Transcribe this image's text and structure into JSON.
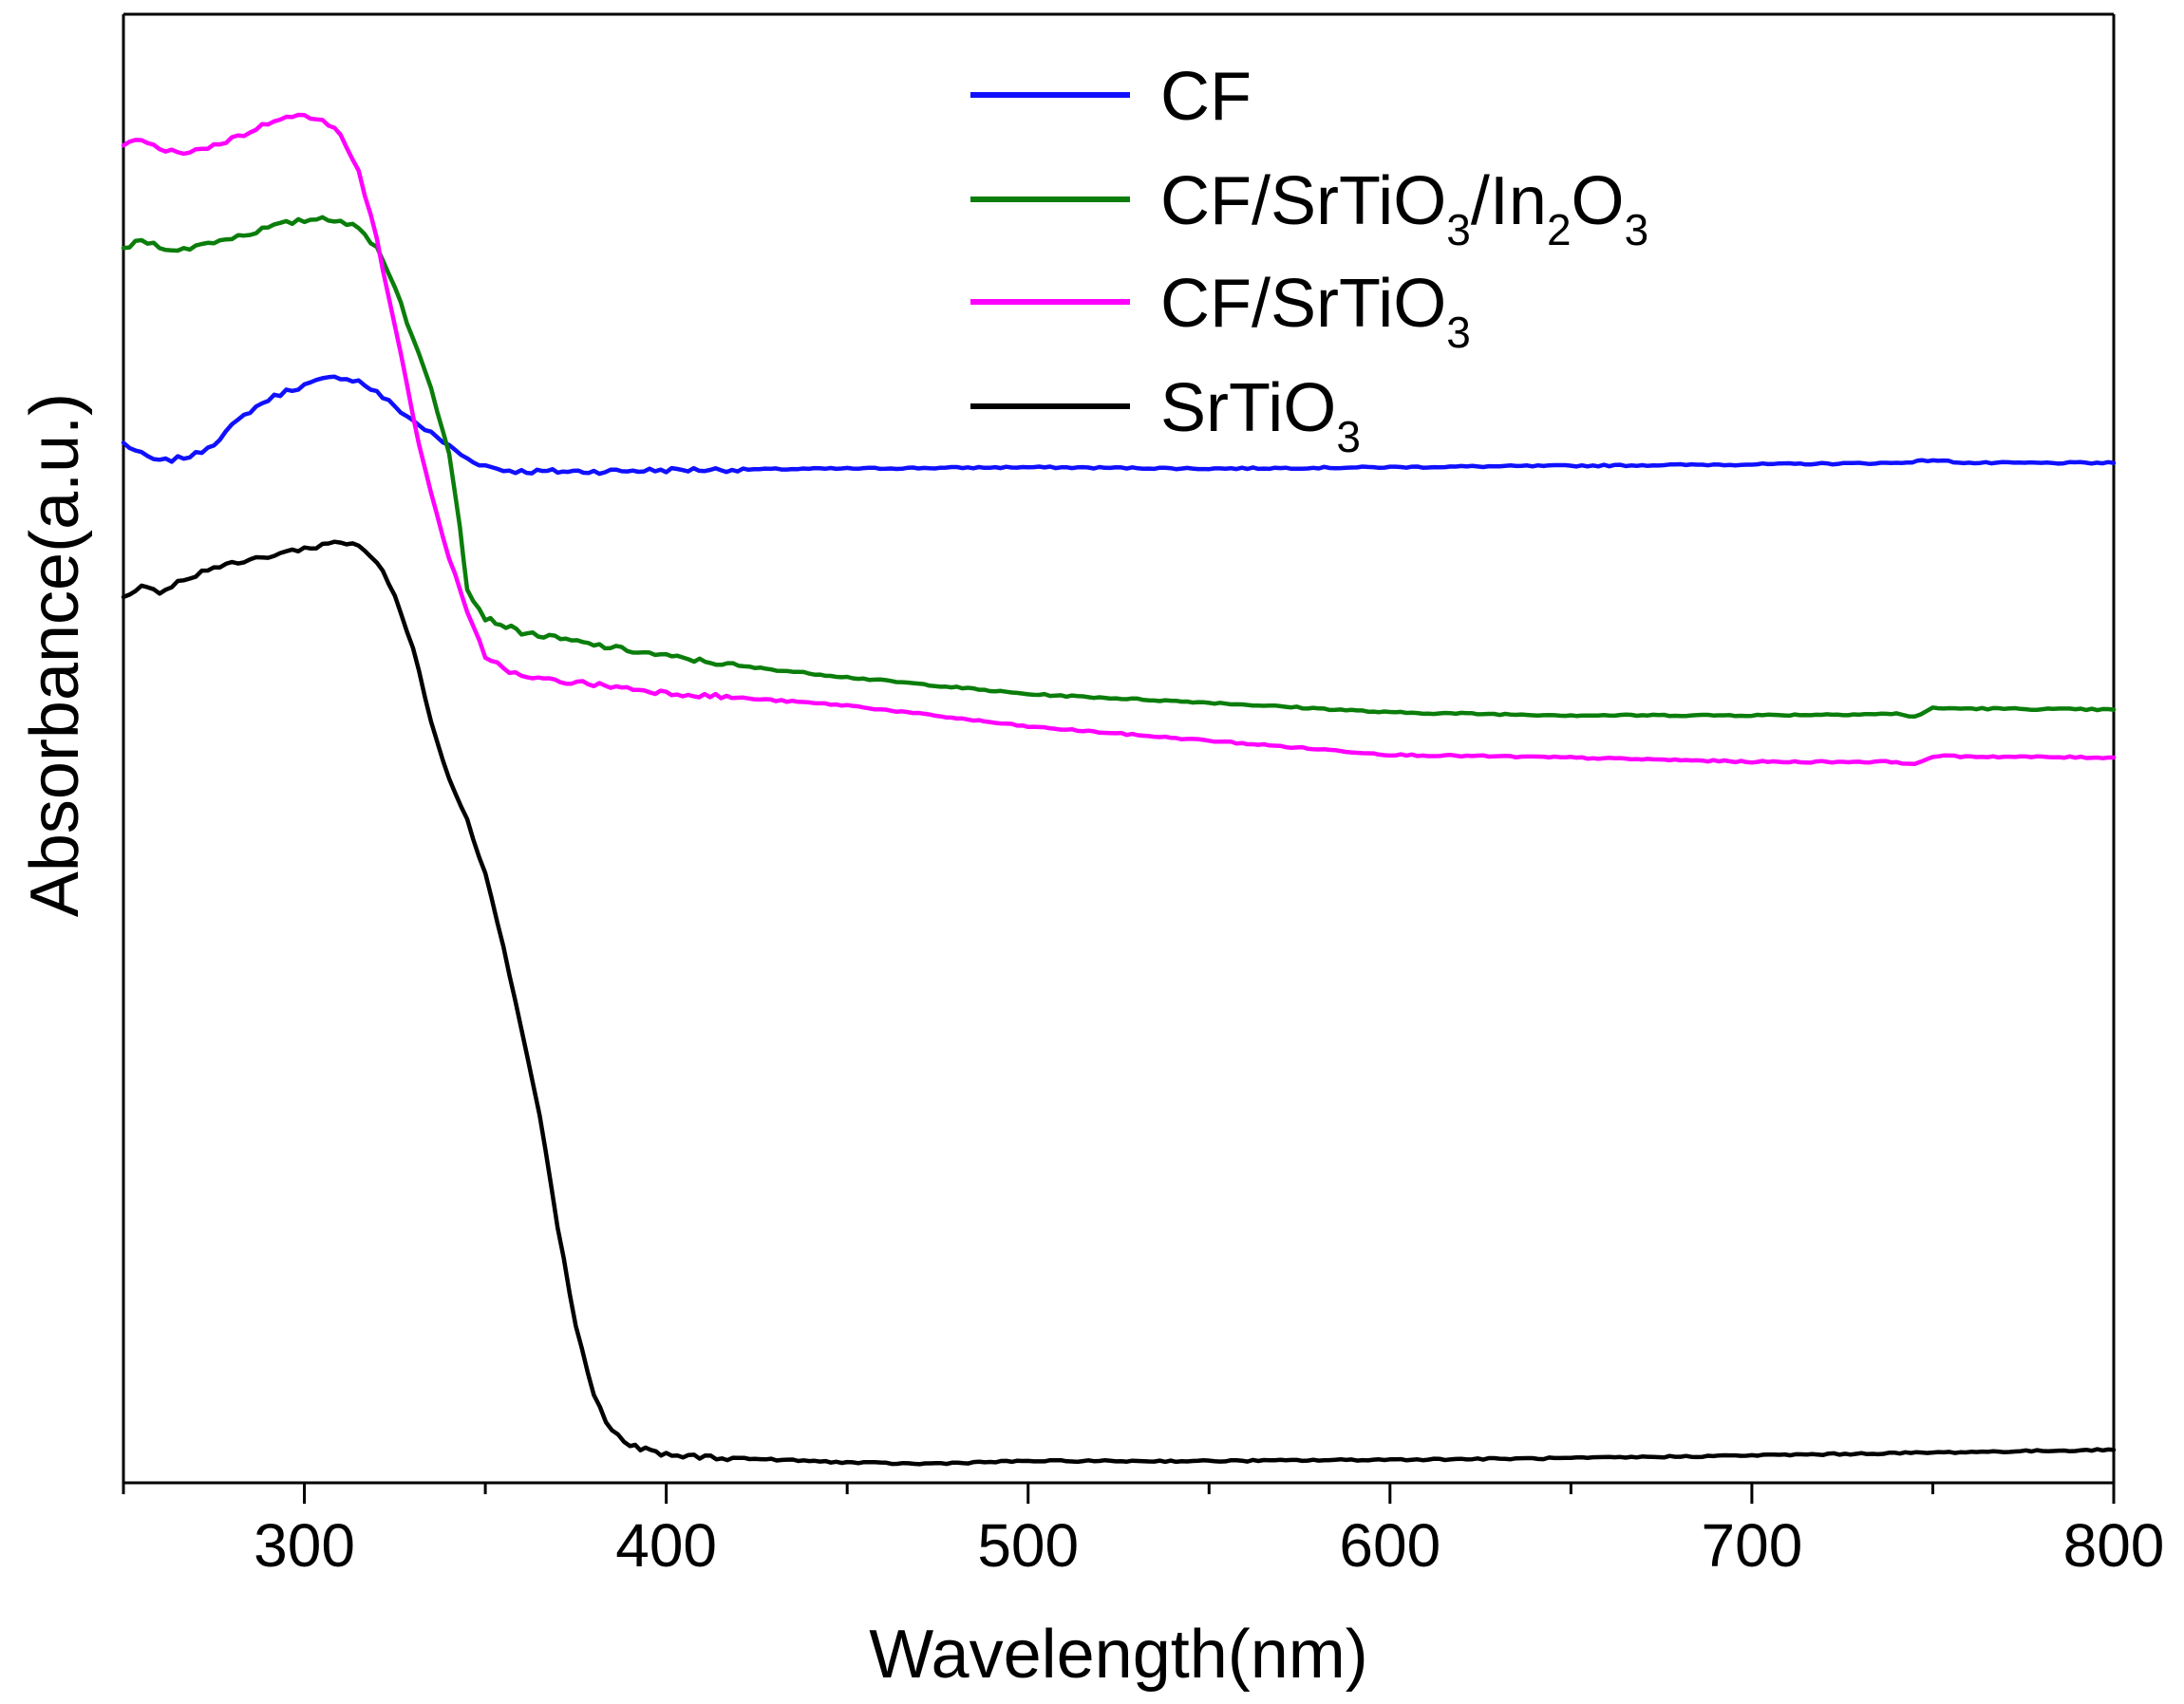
{
  "chart_data": {
    "type": "line",
    "title": "",
    "xlabel": "Wavelength(nm)",
    "ylabel": "Absorbance(a.u.)",
    "xlim": [
      250,
      800
    ],
    "ylim": [
      0,
      1
    ],
    "x_ticks": [
      300,
      400,
      500,
      600,
      700,
      800
    ],
    "y_ticks": [],
    "grid": false,
    "legend_position": "top-right",
    "series": [
      {
        "name": "CF",
        "legend": {
          "main": "CF",
          "parts": []
        },
        "color": "#1010ff",
        "points": [
          [
            250,
            0.726
          ],
          [
            255,
            0.718
          ],
          [
            260,
            0.713
          ],
          [
            265,
            0.715
          ],
          [
            270,
            0.718
          ],
          [
            275,
            0.726
          ],
          [
            280,
            0.738
          ],
          [
            285,
            0.749
          ],
          [
            290,
            0.757
          ],
          [
            295,
            0.763
          ],
          [
            300,
            0.767
          ],
          [
            305,
            0.771
          ],
          [
            310,
            0.773
          ],
          [
            315,
            0.77
          ],
          [
            320,
            0.762
          ],
          [
            325,
            0.752
          ],
          [
            330,
            0.742
          ],
          [
            335,
            0.733
          ],
          [
            340,
            0.724
          ],
          [
            345,
            0.715
          ],
          [
            350,
            0.71
          ],
          [
            355,
            0.707
          ],
          [
            360,
            0.706
          ],
          [
            370,
            0.706
          ],
          [
            380,
            0.706
          ],
          [
            400,
            0.707
          ],
          [
            450,
            0.708
          ],
          [
            500,
            0.709
          ],
          [
            550,
            0.708
          ],
          [
            600,
            0.709
          ],
          [
            650,
            0.71
          ],
          [
            700,
            0.711
          ],
          [
            740,
            0.712
          ],
          [
            750,
            0.714
          ],
          [
            760,
            0.712
          ],
          [
            780,
            0.712
          ],
          [
            800,
            0.712
          ]
        ]
      },
      {
        "name": "CF/SrTiO3/In2O3",
        "legend": {
          "main": "CF/SrTiO",
          "parts": [
            {
              "t": "3",
              "sub": true
            },
            {
              "t": "/In",
              "sub": false
            },
            {
              "t": "2",
              "sub": true
            },
            {
              "t": "O",
              "sub": false
            },
            {
              "t": "3",
              "sub": true
            }
          ]
        },
        "color": "#0b7d0b",
        "points": [
          [
            250,
            0.864
          ],
          [
            255,
            0.87
          ],
          [
            260,
            0.866
          ],
          [
            265,
            0.862
          ],
          [
            270,
            0.866
          ],
          [
            275,
            0.869
          ],
          [
            280,
            0.872
          ],
          [
            285,
            0.875
          ],
          [
            290,
            0.879
          ],
          [
            295,
            0.882
          ],
          [
            300,
            0.884
          ],
          [
            305,
            0.886
          ],
          [
            310,
            0.884
          ],
          [
            315,
            0.878
          ],
          [
            320,
            0.865
          ],
          [
            325,
            0.838
          ],
          [
            330,
            0.8
          ],
          [
            335,
            0.765
          ],
          [
            340,
            0.72
          ],
          [
            343,
            0.668
          ],
          [
            345,
            0.622
          ],
          [
            350,
            0.602
          ],
          [
            360,
            0.592
          ],
          [
            380,
            0.583
          ],
          [
            400,
            0.575
          ],
          [
            420,
            0.568
          ],
          [
            450,
            0.56
          ],
          [
            500,
            0.548
          ],
          [
            550,
            0.542
          ],
          [
            600,
            0.535
          ],
          [
            650,
            0.533
          ],
          [
            700,
            0.533
          ],
          [
            740,
            0.534
          ],
          [
            745,
            0.532
          ],
          [
            750,
            0.538
          ],
          [
            800,
            0.537
          ]
        ]
      },
      {
        "name": "CF/SrTiO3",
        "legend": {
          "main": "CF/SrTiO",
          "parts": [
            {
              "t": "3",
              "sub": true
            }
          ]
        },
        "color": "#ff00ff",
        "points": [
          [
            250,
            0.937
          ],
          [
            255,
            0.942
          ],
          [
            260,
            0.934
          ],
          [
            265,
            0.932
          ],
          [
            270,
            0.934
          ],
          [
            275,
            0.937
          ],
          [
            280,
            0.942
          ],
          [
            285,
            0.947
          ],
          [
            290,
            0.953
          ],
          [
            295,
            0.959
          ],
          [
            300,
            0.958
          ],
          [
            305,
            0.954
          ],
          [
            310,
            0.946
          ],
          [
            315,
            0.92
          ],
          [
            320,
            0.87
          ],
          [
            325,
            0.81
          ],
          [
            330,
            0.745
          ],
          [
            335,
            0.69
          ],
          [
            340,
            0.645
          ],
          [
            345,
            0.605
          ],
          [
            350,
            0.575
          ],
          [
            355,
            0.567
          ],
          [
            360,
            0.56
          ],
          [
            380,
            0.555
          ],
          [
            400,
            0.549
          ],
          [
            450,
            0.54
          ],
          [
            500,
            0.525
          ],
          [
            550,
            0.515
          ],
          [
            600,
            0.505
          ],
          [
            650,
            0.503
          ],
          [
            700,
            0.5
          ],
          [
            740,
            0.5
          ],
          [
            745,
            0.498
          ],
          [
            750,
            0.504
          ],
          [
            800,
            0.503
          ]
        ]
      },
      {
        "name": "SrTiO3",
        "legend": {
          "main": "SrTiO",
          "parts": [
            {
              "t": "3",
              "sub": true
            }
          ]
        },
        "color": "#000000",
        "points": [
          [
            250,
            0.616
          ],
          [
            255,
            0.626
          ],
          [
            260,
            0.62
          ],
          [
            265,
            0.627
          ],
          [
            270,
            0.633
          ],
          [
            275,
            0.638
          ],
          [
            280,
            0.64
          ],
          [
            285,
            0.643
          ],
          [
            290,
            0.646
          ],
          [
            295,
            0.649
          ],
          [
            300,
            0.651
          ],
          [
            305,
            0.654
          ],
          [
            310,
            0.656
          ],
          [
            315,
            0.654
          ],
          [
            320,
            0.642
          ],
          [
            325,
            0.618
          ],
          [
            330,
            0.58
          ],
          [
            335,
            0.53
          ],
          [
            340,
            0.488
          ],
          [
            345,
            0.46
          ],
          [
            350,
            0.42
          ],
          [
            355,
            0.37
          ],
          [
            360,
            0.31
          ],
          [
            365,
            0.25
          ],
          [
            370,
            0.17
          ],
          [
            375,
            0.1
          ],
          [
            380,
            0.05
          ],
          [
            385,
            0.025
          ],
          [
            390,
            0.015
          ],
          [
            400,
            0.008
          ],
          [
            420,
            0.006
          ],
          [
            450,
            0.003
          ],
          [
            470,
            0.002
          ],
          [
            500,
            0.004
          ],
          [
            550,
            0.004
          ],
          [
            600,
            0.005
          ],
          [
            650,
            0.006
          ],
          [
            700,
            0.008
          ],
          [
            750,
            0.01
          ],
          [
            800,
            0.012
          ]
        ]
      }
    ]
  }
}
